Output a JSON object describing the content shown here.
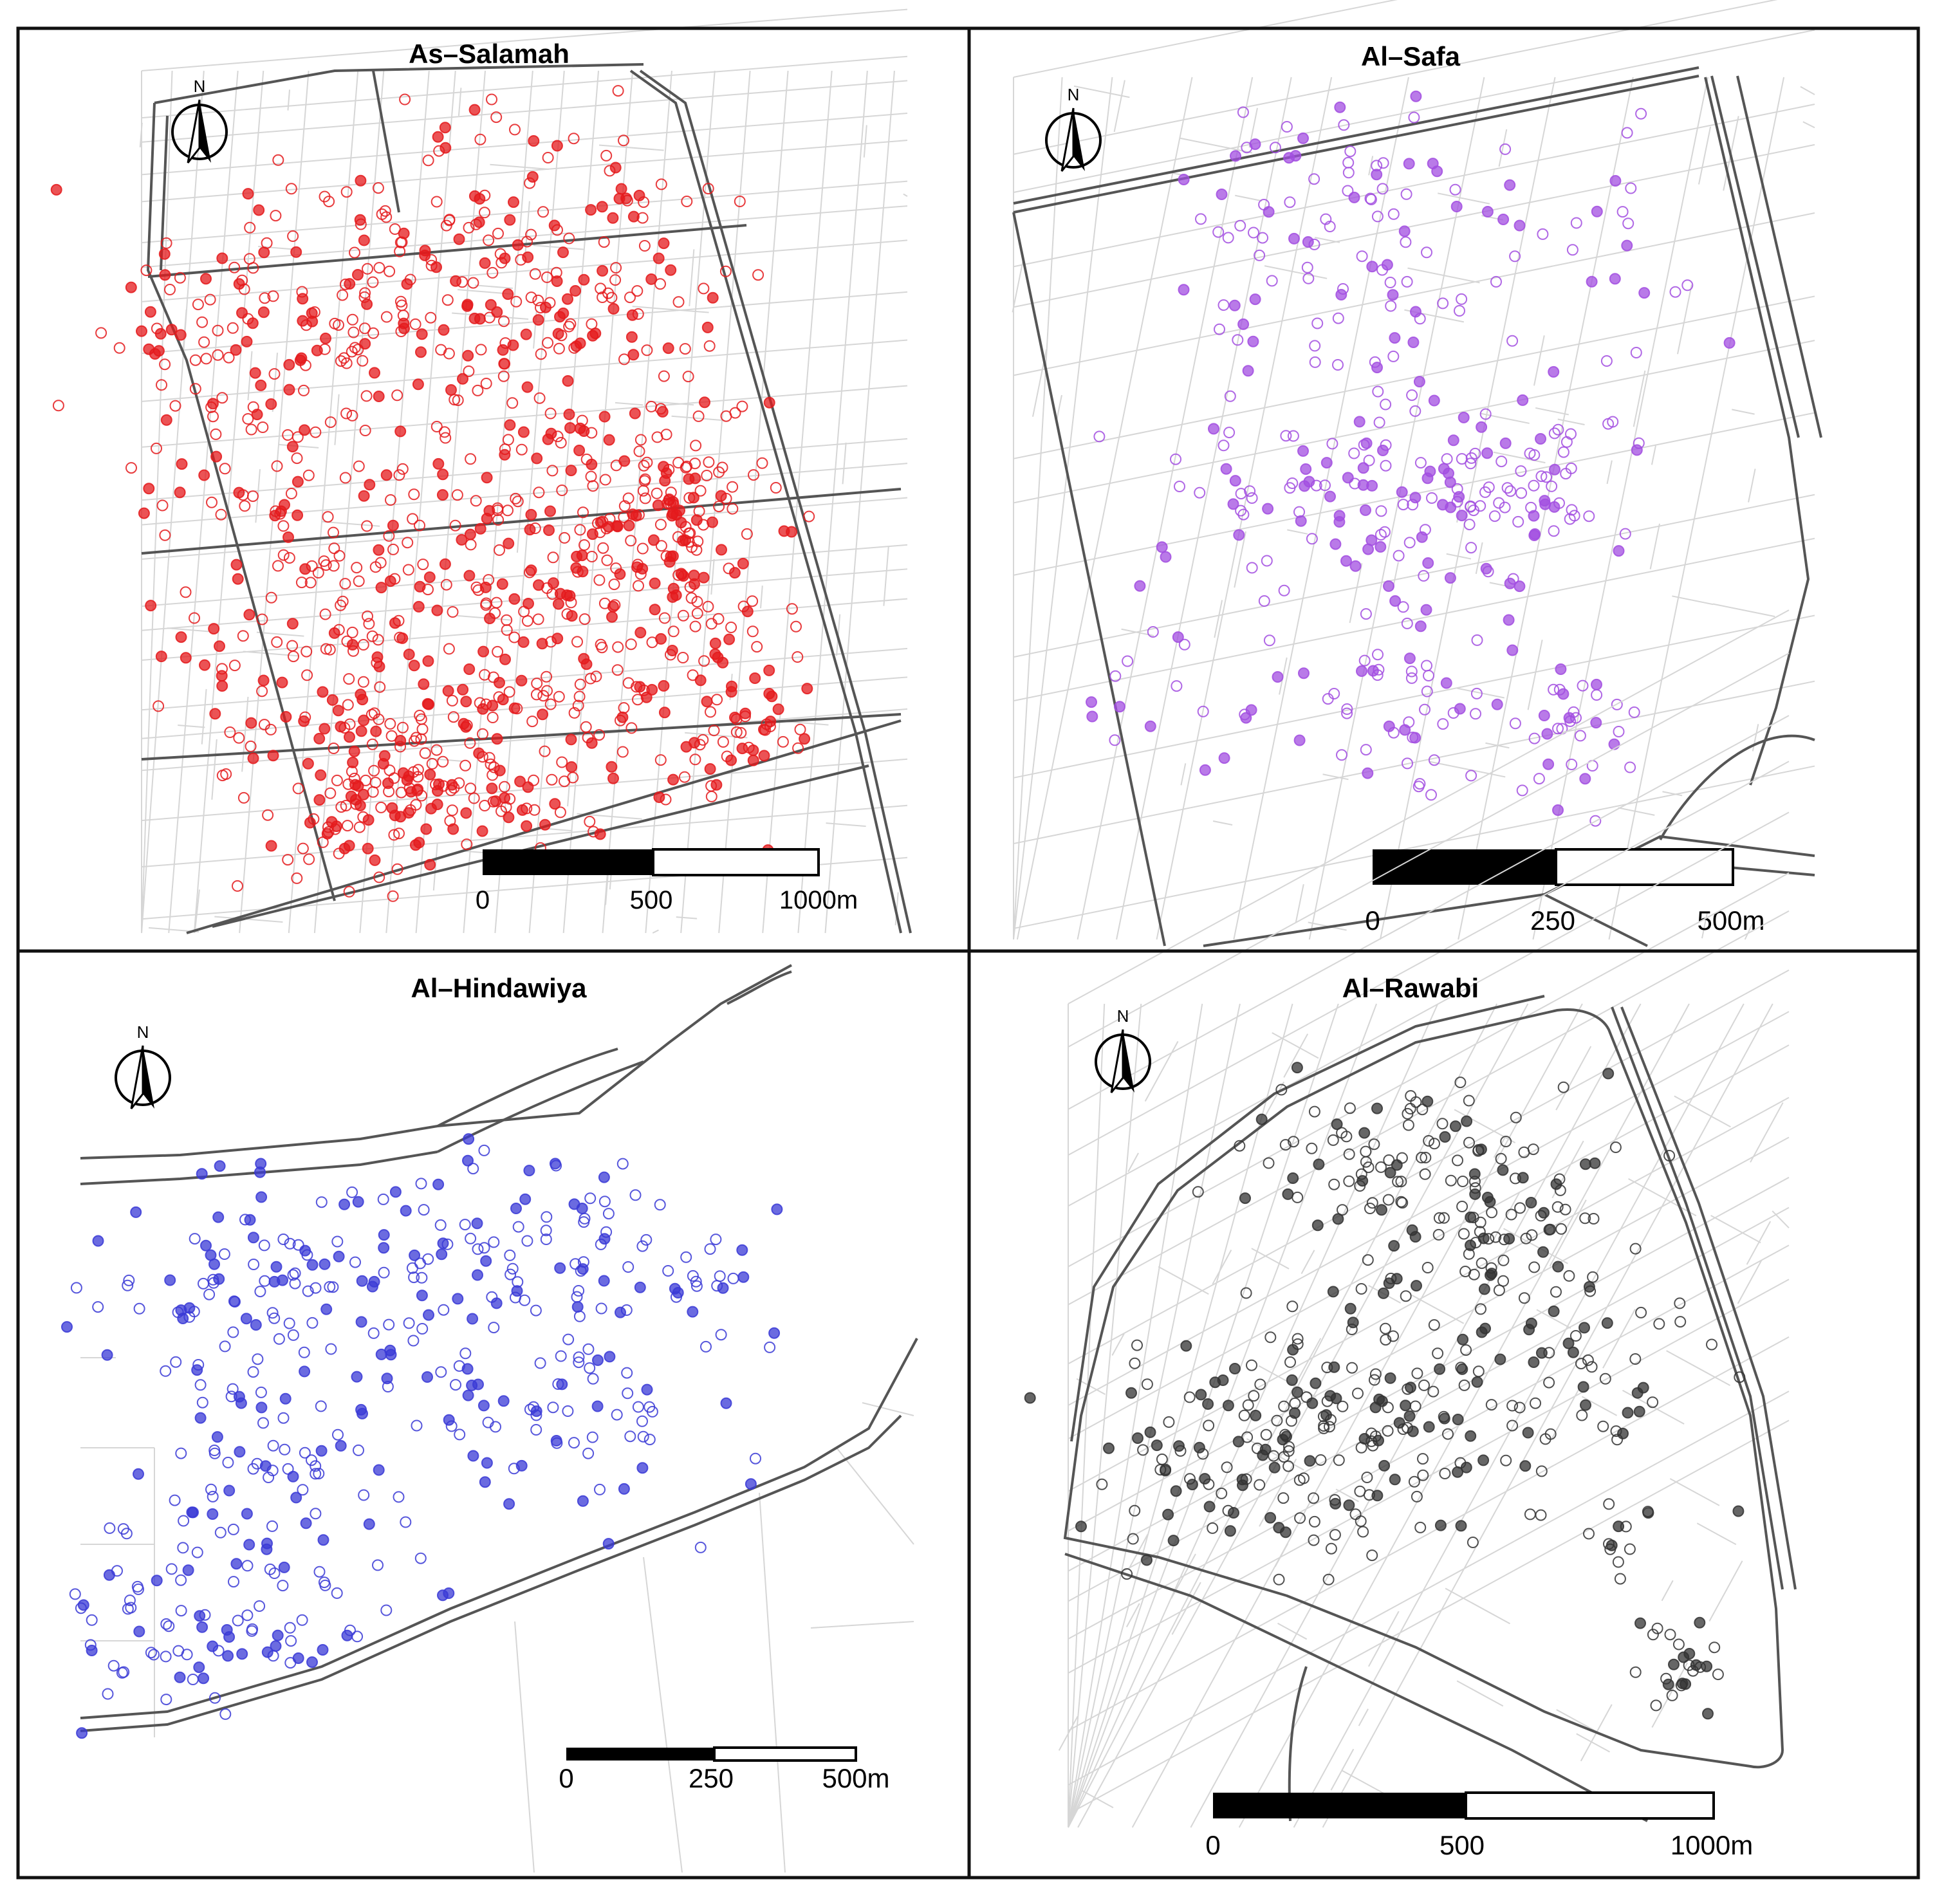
{
  "figure": {
    "panels": [
      {
        "id": "as-salamah",
        "title": "As–Salamah",
        "point_color": "#e41a1c",
        "north_label": "N",
        "scale_labels": [
          "0",
          "500",
          "1000m"
        ]
      },
      {
        "id": "al-safa",
        "title": "Al–Safa",
        "point_color": "#a24ee0",
        "north_label": "N",
        "scale_labels": [
          "0",
          "250",
          "500m"
        ]
      },
      {
        "id": "al-hindawiya",
        "title": "Al–Hindawiya",
        "point_color": "#3a3ad6",
        "north_label": "N",
        "scale_labels": [
          "0",
          "250",
          "500m"
        ]
      },
      {
        "id": "al-rawabi",
        "title": "Al–Rawabi",
        "point_color": "#333333",
        "north_label": "N",
        "scale_labels": [
          "0",
          "500",
          "1000m"
        ]
      }
    ],
    "colors": {
      "street_minor": "#d6d6d6",
      "street_major": "#555555",
      "frame": "#111111"
    },
    "legend_icons": [
      "north-arrow-icon",
      "scale-bar"
    ]
  }
}
